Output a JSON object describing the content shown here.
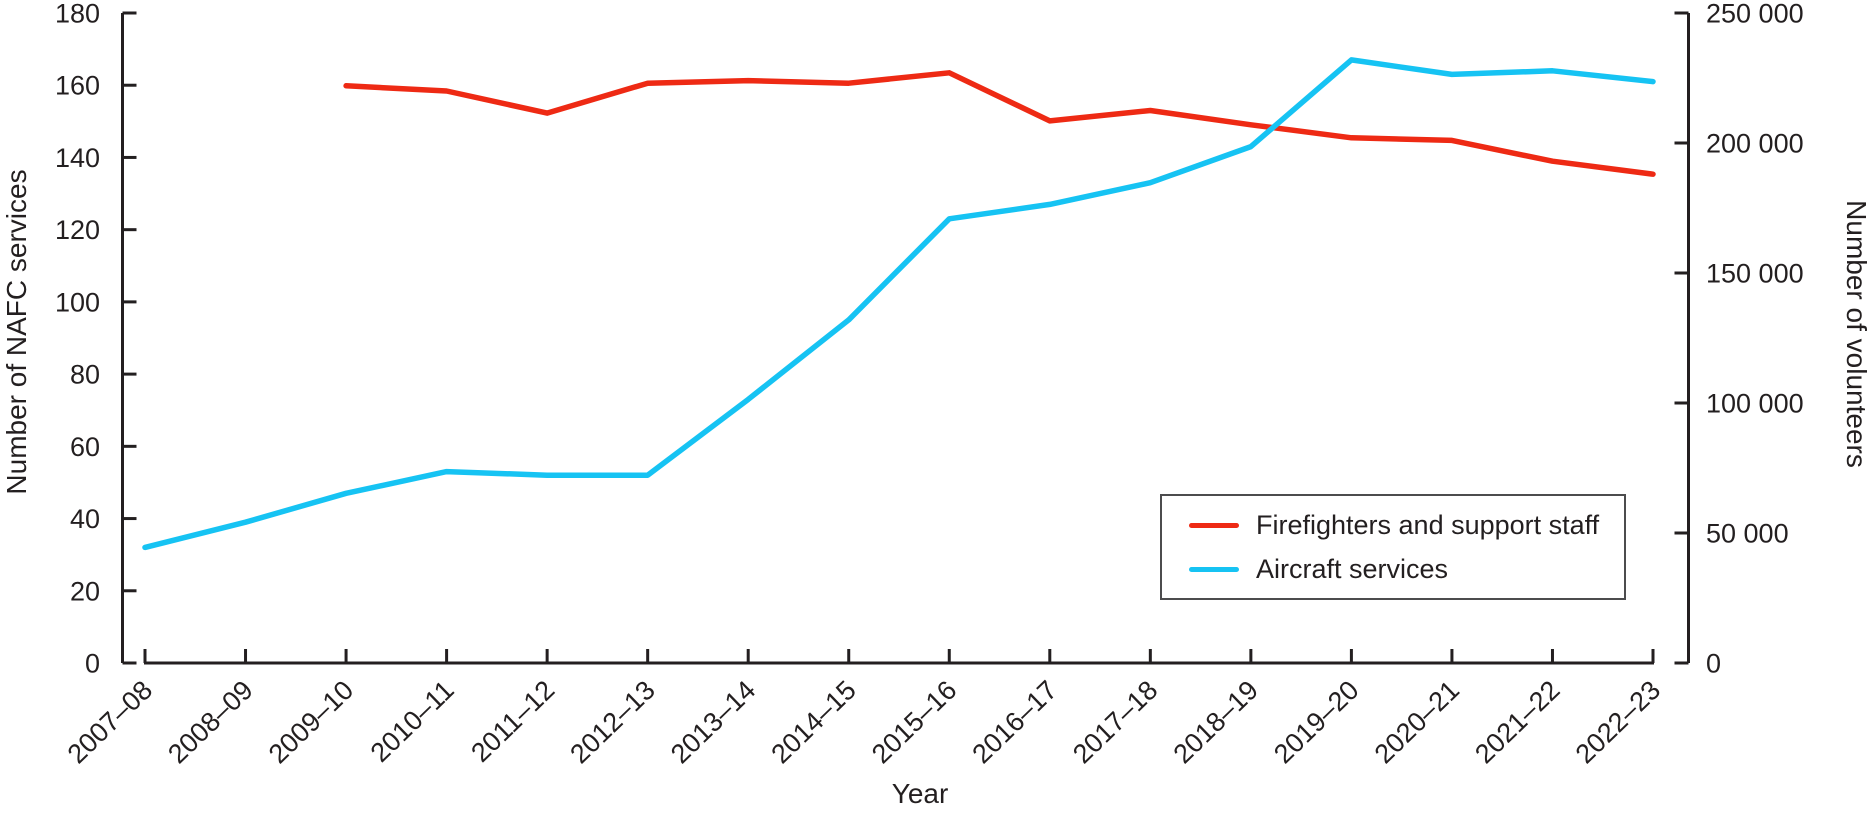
{
  "chart_data": {
    "type": "line",
    "title": "",
    "xlabel": "Year",
    "ylabel_left": "Number of NAFC services",
    "ylabel_right": "Number of volunteers",
    "grid": false,
    "legend_position": "lower right",
    "categories": [
      "2007–08",
      "2008–09",
      "2009–10",
      "2010–11",
      "2011–12",
      "2012–13",
      "2013–14",
      "2014–15",
      "2015–16",
      "2016–17",
      "2017–18",
      "2018–19",
      "2019–20",
      "2020–21",
      "2021–22",
      "2022–23"
    ],
    "left_axis": {
      "min": 0,
      "max": 180,
      "tick_step": 20,
      "tick_labels": [
        "0",
        "20",
        "40",
        "60",
        "80",
        "100",
        "120",
        "140",
        "160",
        "180"
      ]
    },
    "right_axis": {
      "min": 0,
      "max": 250000,
      "tick_step": 50000,
      "tick_labels": [
        "0",
        "50 000",
        "100 000",
        "150 000",
        "200 000",
        "250 000"
      ]
    },
    "series": [
      {
        "name": "Firefighters and support staff",
        "axis": "right",
        "color": "#ee2a14",
        "values": [
          null,
          null,
          222000,
          220000,
          211500,
          223000,
          224000,
          223000,
          227000,
          208500,
          212500,
          207000,
          202000,
          201000,
          193000,
          188000
        ]
      },
      {
        "name": "Aircraft services",
        "axis": "left",
        "color": "#16c3f3",
        "values": [
          32,
          39,
          47,
          53,
          52,
          52,
          73,
          95,
          123,
          127,
          133,
          143,
          167,
          163,
          164,
          161
        ]
      }
    ],
    "axis_color": "#231f20",
    "text_color": "#231f20"
  }
}
